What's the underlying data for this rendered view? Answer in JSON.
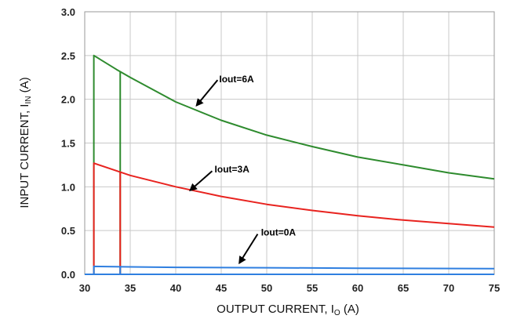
{
  "chart_data": {
    "type": "line",
    "xlabel": {
      "main": "OUTPUT CURRENT, I",
      "sub": "O",
      "unit": " (A)"
    },
    "ylabel": {
      "main": "INPUT CURRENT, I",
      "sub": "IN",
      "unit": " (A)"
    },
    "xlim": [
      30,
      75
    ],
    "ylim": [
      0,
      3.0
    ],
    "xticks": [
      30,
      35,
      40,
      45,
      50,
      55,
      60,
      65,
      70,
      75
    ],
    "xtick_labels": [
      "30",
      "35",
      "40",
      "45",
      "50",
      "55",
      "60",
      "65",
      "70",
      "75"
    ],
    "yticks": [
      0,
      0.5,
      1.0,
      1.5,
      2.0,
      2.5,
      3.0
    ],
    "ytick_labels": [
      "0.0",
      "0.5",
      "1.0",
      "1.5",
      "2.0",
      "2.5",
      "3.0"
    ],
    "grid": true,
    "series": [
      {
        "name": "Iout=6A",
        "color": "#2e8b2e",
        "points": [
          [
            31.0,
            0
          ],
          [
            31.0,
            2.5
          ],
          [
            33.5,
            2.34
          ],
          [
            35,
            2.25
          ],
          [
            40,
            1.97
          ],
          [
            45,
            1.76
          ],
          [
            50,
            1.59
          ],
          [
            55,
            1.46
          ],
          [
            60,
            1.34
          ],
          [
            65,
            1.25
          ],
          [
            70,
            1.16
          ],
          [
            75,
            1.09
          ]
        ],
        "extra_segments": [
          [
            [
              33.9,
              0
            ],
            [
              33.9,
              2.31
            ]
          ]
        ]
      },
      {
        "name": "Iout=3A",
        "color": "#e8231f",
        "points": [
          [
            31.0,
            0
          ],
          [
            31.0,
            1.27
          ],
          [
            35,
            1.13
          ],
          [
            40,
            1.0
          ],
          [
            45,
            0.89
          ],
          [
            50,
            0.8
          ],
          [
            55,
            0.73
          ],
          [
            60,
            0.67
          ],
          [
            65,
            0.62
          ],
          [
            70,
            0.58
          ],
          [
            75,
            0.54
          ]
        ],
        "extra_segments": [
          [
            [
              33.9,
              0
            ],
            [
              33.9,
              1.17
            ]
          ]
        ]
      },
      {
        "name": "Iout=0A",
        "color": "#2f7fe0",
        "points": [
          [
            31.0,
            0
          ],
          [
            31.0,
            0.09
          ],
          [
            35,
            0.085
          ],
          [
            40,
            0.08
          ],
          [
            50,
            0.075
          ],
          [
            60,
            0.07
          ],
          [
            75,
            0.065
          ]
        ],
        "extra_segments": [
          [
            [
              33.9,
              0
            ],
            [
              33.9,
              0.085
            ]
          ]
        ]
      }
    ],
    "baseline_color": "#2f7fe0",
    "annotations": [
      {
        "text": "Iout=6A",
        "text_at": [
          44.6,
          2.23
        ],
        "arrow_from": [
          44.6,
          2.22
        ],
        "arrow_to": [
          42.3,
          1.93
        ]
      },
      {
        "text": "Iout=3A",
        "text_at": [
          44.1,
          1.2
        ],
        "arrow_from": [
          44.0,
          1.18
        ],
        "arrow_to": [
          41.6,
          0.96
        ]
      },
      {
        "text": "Iout=0A",
        "text_at": [
          49.2,
          0.48
        ],
        "arrow_from": [
          49.0,
          0.46
        ],
        "arrow_to": [
          47.0,
          0.13
        ]
      }
    ]
  }
}
